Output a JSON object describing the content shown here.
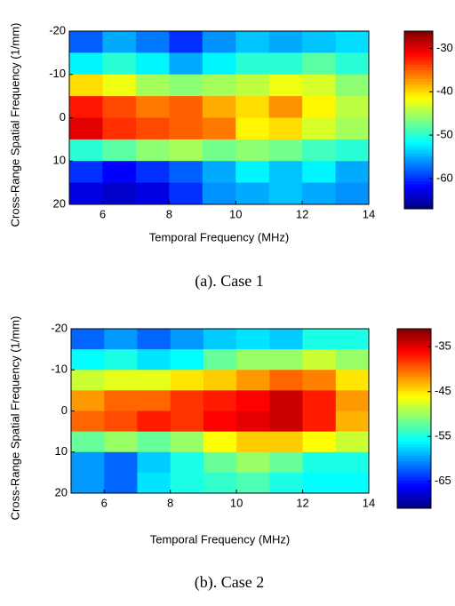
{
  "chart_data": [
    {
      "type": "heatmap",
      "caption": "(a). Case 1",
      "xlabel": "Temporal Frequency (MHz)",
      "ylabel": "Cross-Range Spatial Frequency (1/mm)",
      "x": [
        5.5,
        6.5,
        7.5,
        8.5,
        9.5,
        10.5,
        11.5,
        12.5,
        13.5
      ],
      "y": [
        -17.5,
        -12.5,
        -7.5,
        -2.5,
        2.5,
        7.5,
        12.5,
        17.5
      ],
      "values": [
        [
          -58,
          -55,
          -57,
          -60,
          -56,
          -54,
          -55,
          -54,
          -53
        ],
        [
          -52,
          -50,
          -52,
          -55,
          -52,
          -50,
          -50,
          -48,
          -50
        ],
        [
          -40,
          -42,
          -45,
          -46,
          -45,
          -44,
          -42,
          -43,
          -46
        ],
        [
          -32,
          -34,
          -36,
          -35,
          -38,
          -40,
          -37,
          -41,
          -44
        ],
        [
          -30,
          -33,
          -34,
          -35,
          -36,
          -41,
          -40,
          -43,
          -45
        ],
        [
          -50,
          -48,
          -46,
          -45,
          -47,
          -46,
          -47,
          -49,
          -50
        ],
        [
          -60,
          -62,
          -60,
          -58,
          -55,
          -52,
          -54,
          -52,
          -55
        ],
        [
          -63,
          -64,
          -63,
          -60,
          -56,
          -55,
          -54,
          -55,
          -56
        ]
      ],
      "xlim": [
        5,
        14
      ],
      "xticks": [
        6,
        8,
        10,
        12,
        14
      ],
      "ylim": [
        20,
        -20
      ],
      "yticks": [
        -20,
        -10,
        0,
        10,
        20
      ],
      "colormap": "jet",
      "clim": [
        -67,
        -26
      ],
      "cticks": [
        -30,
        -40,
        -50,
        -60
      ]
    },
    {
      "type": "heatmap",
      "caption": "(b). Case 2",
      "xlabel": "Temporal Frequency (MHz)",
      "ylabel": "Cross-Range Spatial Frequency (1/mm)",
      "x": [
        5.5,
        6.5,
        7.5,
        8.5,
        9.5,
        10.5,
        11.5,
        12.5,
        13.5
      ],
      "y": [
        -17.5,
        -12.5,
        -7.5,
        -2.5,
        2.5,
        7.5,
        12.5,
        17.5
      ],
      "values": [
        [
          -62,
          -60,
          -62,
          -60,
          -58,
          -57,
          -58,
          -55,
          -55
        ],
        [
          -56,
          -55,
          -57,
          -56,
          -52,
          -50,
          -50,
          -48,
          -50
        ],
        [
          -48,
          -47,
          -47,
          -45,
          -44,
          -42,
          -40,
          -41,
          -45
        ],
        [
          -42,
          -40,
          -40,
          -38,
          -37,
          -36,
          -34,
          -37,
          -42
        ],
        [
          -40,
          -39,
          -37,
          -38,
          -36,
          -35,
          -34,
          -37,
          -43
        ],
        [
          -52,
          -50,
          -52,
          -50,
          -46,
          -44,
          -44,
          -46,
          -48
        ],
        [
          -60,
          -62,
          -58,
          -55,
          -52,
          -50,
          -52,
          -55,
          -55
        ],
        [
          -60,
          -62,
          -57,
          -55,
          -54,
          -53,
          -55,
          -56,
          -56
        ]
      ],
      "xlim": [
        5,
        14
      ],
      "xticks": [
        6,
        8,
        10,
        12,
        14
      ],
      "ylim": [
        20,
        -20
      ],
      "yticks": [
        -20,
        -10,
        0,
        10,
        20
      ],
      "colormap": "jet",
      "clim": [
        -71,
        -31
      ],
      "cticks": [
        -35,
        -45,
        -55,
        -65
      ]
    }
  ]
}
